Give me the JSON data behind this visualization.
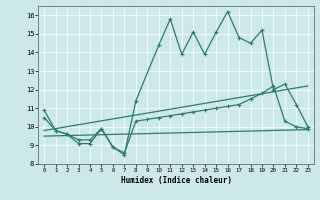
{
  "xlabel": "Humidex (Indice chaleur)",
  "xlim": [
    -0.5,
    23.5
  ],
  "ylim": [
    8,
    16.5
  ],
  "yticks": [
    8,
    9,
    10,
    11,
    12,
    13,
    14,
    15,
    16
  ],
  "xticks": [
    0,
    1,
    2,
    3,
    4,
    5,
    6,
    7,
    8,
    9,
    10,
    11,
    12,
    13,
    14,
    15,
    16,
    17,
    18,
    19,
    20,
    21,
    22,
    23
  ],
  "bg_color": "#cce8e8",
  "line_color": "#2e7b6e",
  "grid_color": "#ffffff",
  "series1_x": [
    0,
    1,
    2,
    3,
    4,
    5,
    6,
    7,
    8,
    10,
    11,
    12,
    13,
    14,
    15,
    16,
    17,
    18,
    19,
    20,
    21,
    22,
    23
  ],
  "series1_y": [
    10.9,
    9.8,
    9.6,
    9.1,
    9.1,
    9.9,
    8.9,
    8.5,
    11.4,
    14.4,
    15.8,
    13.9,
    15.1,
    13.9,
    15.1,
    16.2,
    14.8,
    14.5,
    15.2,
    12.0,
    12.3,
    11.2,
    10.0
  ],
  "series2_x": [
    0,
    1,
    2,
    3,
    4,
    5,
    6,
    7,
    8,
    9,
    10,
    11,
    12,
    13,
    14,
    15,
    16,
    17,
    18,
    19,
    20,
    21,
    22,
    23
  ],
  "series2_y": [
    10.5,
    9.8,
    9.6,
    9.3,
    9.3,
    9.9,
    8.9,
    8.6,
    10.3,
    10.4,
    10.5,
    10.6,
    10.7,
    10.8,
    10.9,
    11.0,
    11.1,
    11.2,
    11.5,
    11.8,
    12.2,
    10.3,
    10.0,
    9.9
  ],
  "series3_x": [
    0,
    23
  ],
  "series3_y": [
    9.5,
    9.85
  ],
  "series4_x": [
    0,
    23
  ],
  "series4_y": [
    9.8,
    12.2
  ]
}
